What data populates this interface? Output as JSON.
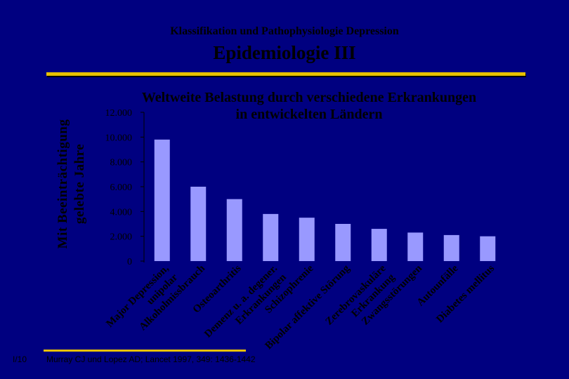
{
  "slide": {
    "header_title": "Klassifikation und Pathophysiologie Depression",
    "main_title": "Epidemiologie III",
    "slide_number": "I/10",
    "source": "Murray CJ und Lopez AD; Lancet 1997, 349: 1436-1442",
    "accent_color": "#e8c000",
    "background_color": "#000080"
  },
  "chart_data": {
    "type": "bar",
    "title_lines": [
      "Weltweite Belastung durch verschiedene Erkrankungen",
      "in entwickelten Ländern"
    ],
    "ylabel_lines": [
      "Mit Beeinträchtigung",
      "gelebte Jahre"
    ],
    "xlabel": "",
    "ylim": [
      0,
      12000
    ],
    "yticks": [
      0,
      2000,
      4000,
      6000,
      8000,
      10000,
      12000
    ],
    "ytick_labels": [
      "0",
      "2.000",
      "4.000",
      "6.000",
      "8.000",
      "10.000",
      "12.000"
    ],
    "grid": false,
    "bar_color": "#9999ff",
    "categories": [
      [
        "Major Depression,",
        "unipolar"
      ],
      [
        "Alkoholmissbrauch"
      ],
      [
        "Osteoarthritis"
      ],
      [
        "Demenz u. a. degener.",
        "Erkrankungen"
      ],
      [
        "Schizophrenie"
      ],
      [
        "Bipolar affektive Störung"
      ],
      [
        "Zerebrovaskuläre",
        "Erkrankung"
      ],
      [
        "Zwangsstörungen"
      ],
      [
        "Autounfälle"
      ],
      [
        "Diabetes mellitus"
      ]
    ],
    "values": [
      9800,
      6000,
      5000,
      3800,
      3500,
      3000,
      2600,
      2300,
      2100,
      2000
    ]
  }
}
